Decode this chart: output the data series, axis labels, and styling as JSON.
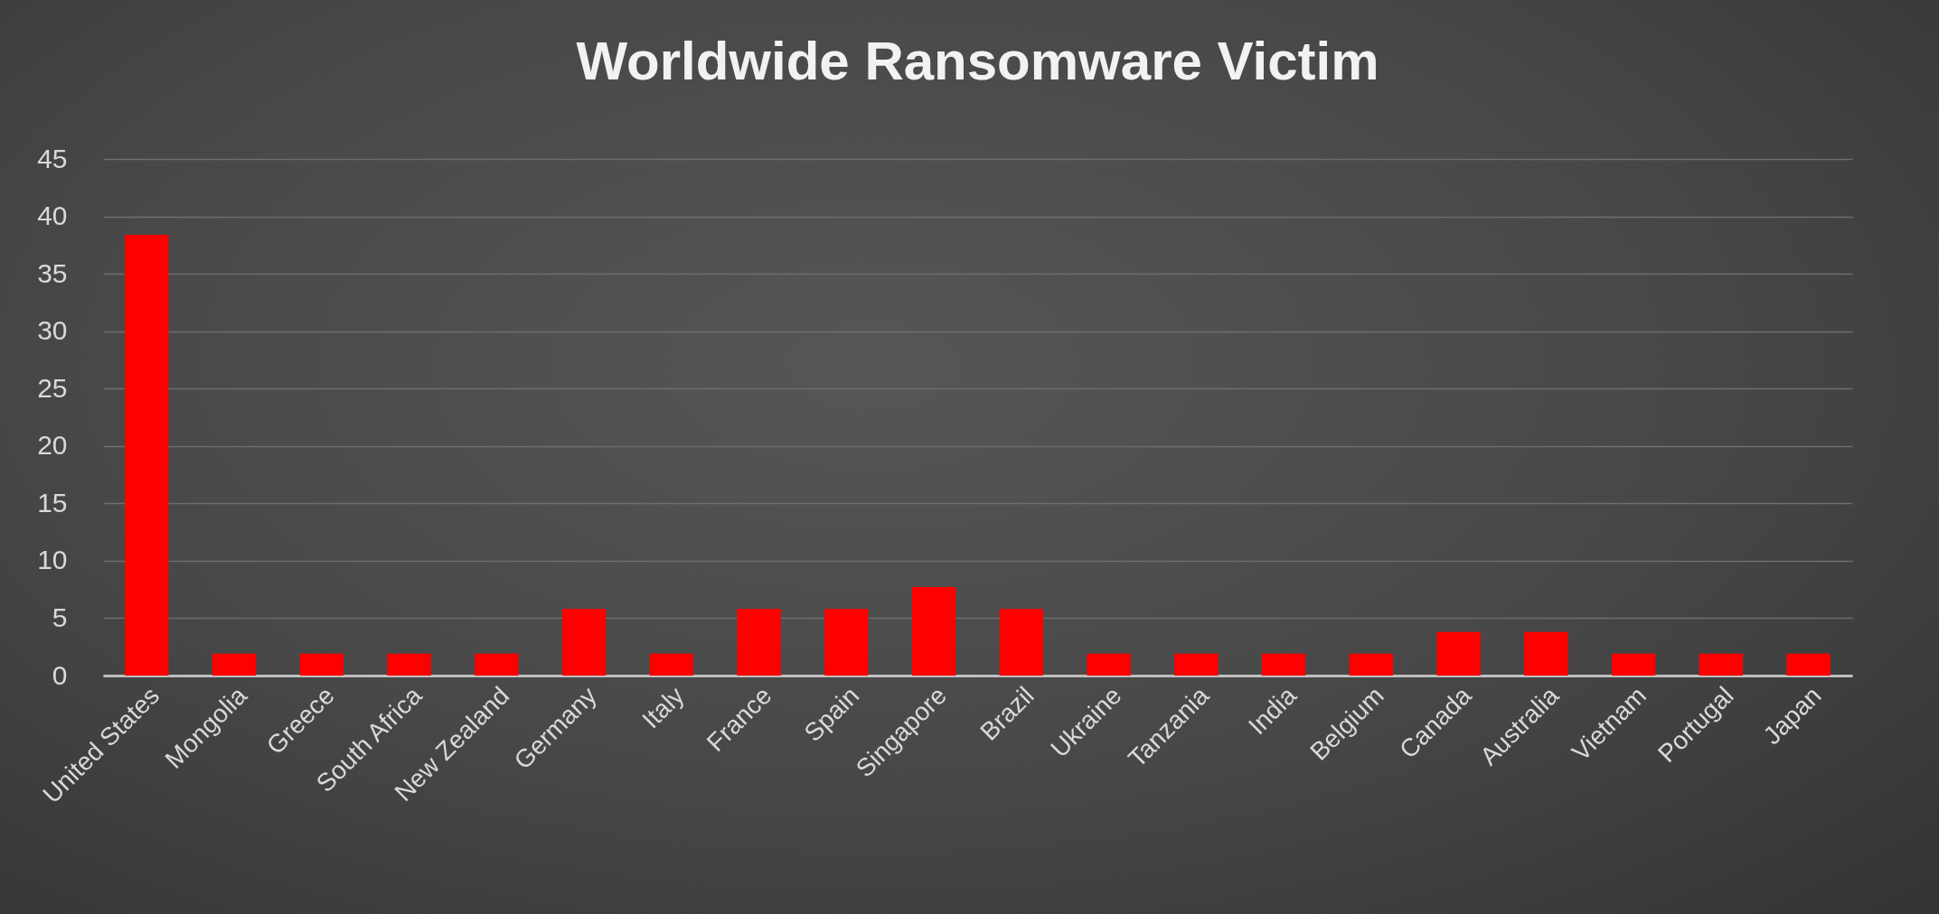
{
  "chart_data": {
    "type": "bar",
    "title": "Worldwide Ransomware Victim",
    "categories": [
      "United States",
      "Mongolia",
      "Greece",
      "South Africa",
      "New Zealand",
      "Germany",
      "Italy",
      "France",
      "Spain",
      "Singapore",
      "Brazil",
      "Ukraine",
      "Tanzania",
      "India",
      "Belgium",
      "Canada",
      "Australia",
      "Vietnam",
      "Portugal",
      "Japan"
    ],
    "values": [
      38.4,
      1.9,
      1.9,
      1.9,
      1.9,
      5.8,
      1.9,
      5.8,
      5.8,
      7.7,
      5.8,
      1.9,
      1.9,
      1.9,
      1.9,
      3.8,
      3.8,
      1.9,
      1.9,
      1.9
    ],
    "color": "#ff0000",
    "ylim": [
      0,
      45
    ],
    "yticks": [
      0,
      5,
      10,
      15,
      20,
      25,
      30,
      35,
      40,
      45
    ],
    "grid": "y"
  }
}
